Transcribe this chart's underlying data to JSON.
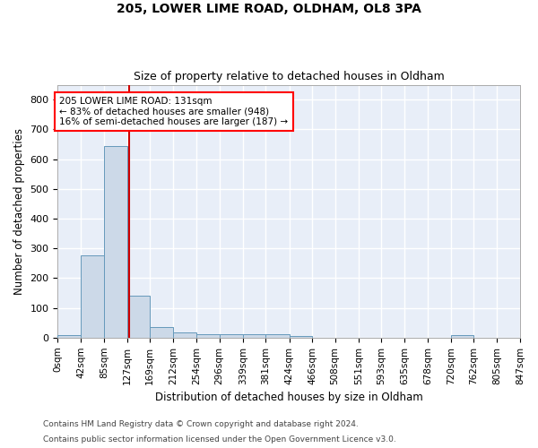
{
  "title1": "205, LOWER LIME ROAD, OLDHAM, OL8 3PA",
  "title2": "Size of property relative to detached houses in Oldham",
  "xlabel": "Distribution of detached houses by size in Oldham",
  "ylabel": "Number of detached properties",
  "footer1": "Contains HM Land Registry data © Crown copyright and database right 2024.",
  "footer2": "Contains public sector information licensed under the Open Government Licence v3.0.",
  "annotation_line1": "205 LOWER LIME ROAD: 131sqm",
  "annotation_line2": "← 83% of detached houses are smaller (948)",
  "annotation_line3": "16% of semi-detached houses are larger (187) →",
  "property_size": 131,
  "bar_color": "#ccd9e8",
  "bar_edge_color": "#6699bb",
  "red_line_color": "#cc0000",
  "background_color": "#e8eef8",
  "grid_color": "#ffffff",
  "bin_edges": [
    0,
    42,
    85,
    127,
    169,
    212,
    254,
    296,
    339,
    381,
    424,
    466,
    508,
    551,
    593,
    635,
    678,
    720,
    762,
    805,
    847
  ],
  "bar_heights": [
    8,
    275,
    645,
    140,
    35,
    18,
    12,
    10,
    10,
    10,
    5,
    0,
    0,
    0,
    0,
    0,
    0,
    7,
    0,
    0
  ],
  "ylim": [
    0,
    850
  ],
  "yticks": [
    0,
    100,
    200,
    300,
    400,
    500,
    600,
    700,
    800
  ],
  "tick_labels": [
    "0sqm",
    "42sqm",
    "85sqm",
    "127sqm",
    "169sqm",
    "212sqm",
    "254sqm",
    "296sqm",
    "339sqm",
    "381sqm",
    "424sqm",
    "466sqm",
    "508sqm",
    "551sqm",
    "593sqm",
    "635sqm",
    "678sqm",
    "720sqm",
    "762sqm",
    "805sqm",
    "847sqm"
  ]
}
